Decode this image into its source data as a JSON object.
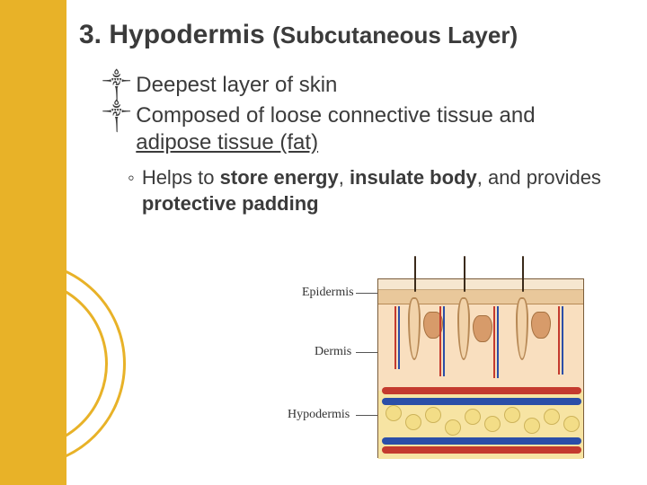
{
  "title": {
    "main": "3. Hypodermis ",
    "sub": "(Subcutaneous Layer)"
  },
  "bullets": [
    {
      "glyph": "༒",
      "before": " ",
      "plain": "Deepest layer of skin"
    },
    {
      "glyph": "༒",
      "before": "",
      "html": "Composed of loose connective tissue and <u>adipose tissue (fat)</u>"
    }
  ],
  "subbullet": {
    "glyph": "◦",
    "html": "Helps to <b>store energy</b>, <b>insulate body</b>, and provides <b>protective padding</b>"
  },
  "diagram": {
    "labels": {
      "epidermis": "Epidermis",
      "dermis": "Dermis",
      "hypodermis": "Hypodermis"
    },
    "colors": {
      "sidebar": "#e8b228",
      "epi_top": "#f6e7d0",
      "epi_bottom": "#e9c89b",
      "dermis": "#f9dfbf",
      "hypodermis": "#f7e4a3",
      "artery": "#c43a2e",
      "vein": "#2b4ea8",
      "follicle_border": "#b78956",
      "lobule": "#f3dd87"
    }
  }
}
